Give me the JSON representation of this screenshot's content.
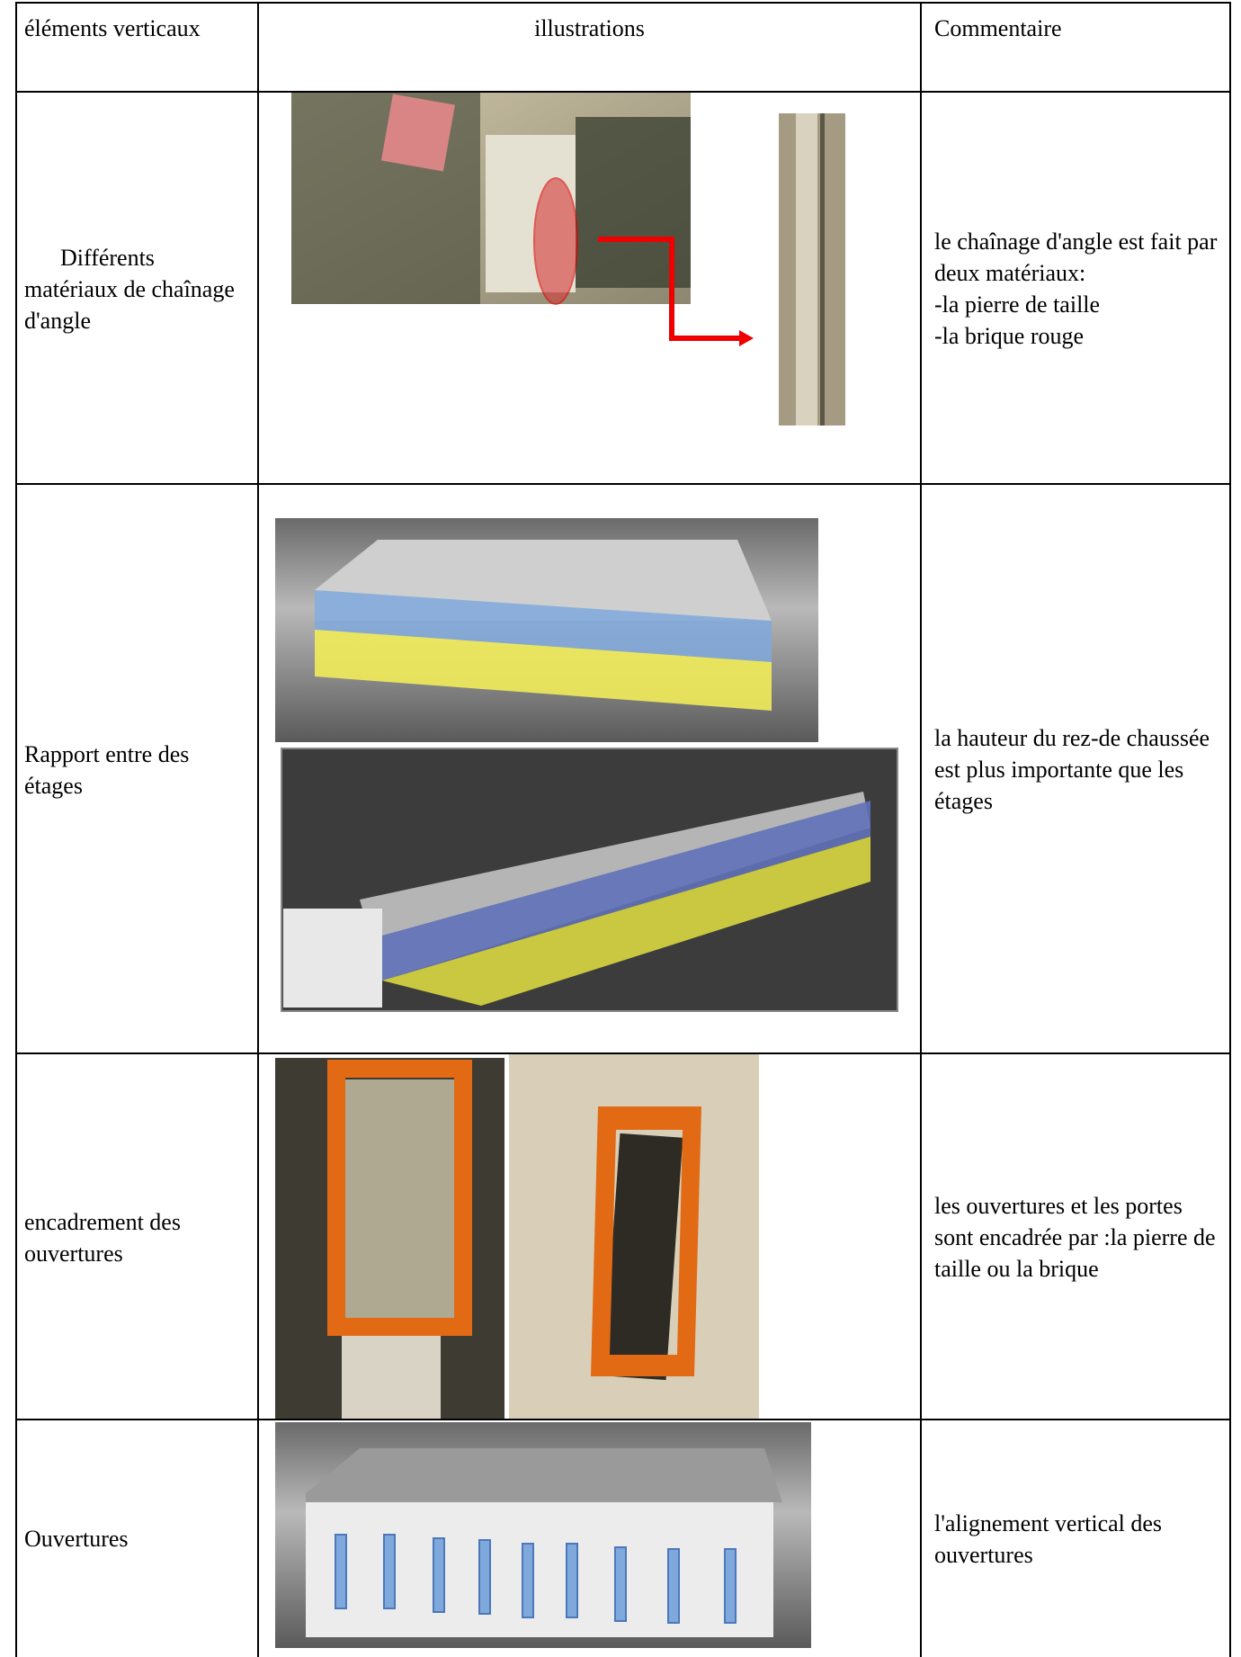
{
  "table": {
    "header": [
      "éléments verticaux",
      "illustrations",
      "Commentaire"
    ],
    "rows": [
      {
        "label": "Différents matériaux de chaînage d'angle",
        "comment": [
          "le chaînage d'angle est fait par deux matériaux:",
          "-la pierre de taille",
          "-la brique rouge"
        ]
      },
      {
        "label": "Rapport entre des étages",
        "comment": [
          "la hauteur du rez-de chaussée est plus importante que les étages"
        ]
      },
      {
        "label": "encadrement des ouvertures",
        "comment": [
          "les ouvertures et les portes sont encadrée par :la pierre de taille ou la brique"
        ]
      },
      {
        "label": "Ouvertures",
        "comment": [
          "l'alignement vertical des ouvertures"
        ]
      }
    ]
  }
}
